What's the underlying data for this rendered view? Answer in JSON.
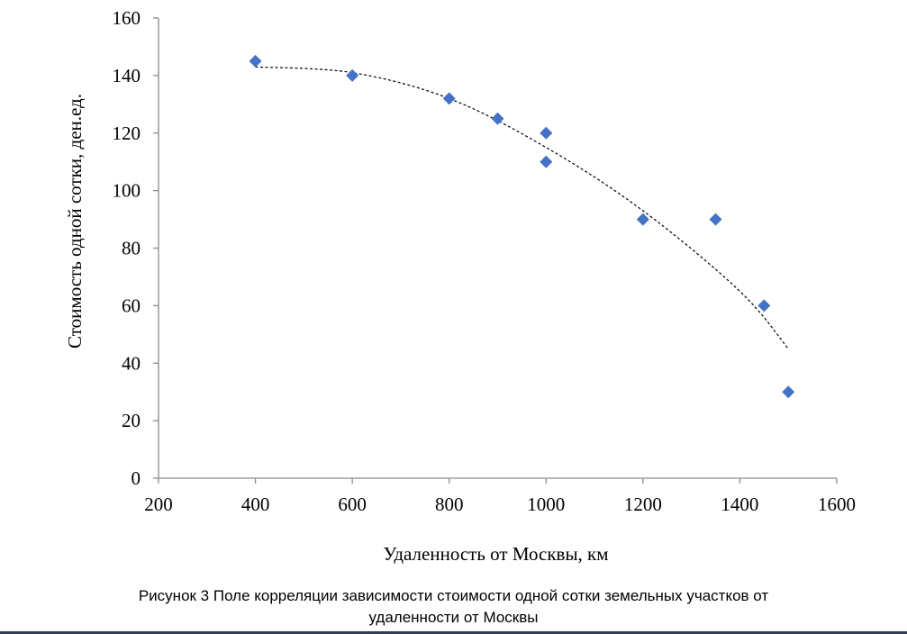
{
  "chart_data": {
    "type": "scatter",
    "title": "",
    "xlabel": "Удаленность от Москвы, км",
    "ylabel": "Стоимость одной сотки, ден.ед.",
    "xlim": [
      200,
      1600
    ],
    "ylim": [
      0,
      160
    ],
    "xticks": [
      200,
      400,
      600,
      800,
      1000,
      1200,
      1400,
      1600
    ],
    "yticks": [
      0,
      20,
      40,
      60,
      80,
      100,
      120,
      140,
      160
    ],
    "grid": false,
    "legend": "none",
    "marker": "diamond",
    "point_color": "#4472c4",
    "points": [
      {
        "x": 400,
        "y": 145
      },
      {
        "x": 600,
        "y": 140
      },
      {
        "x": 800,
        "y": 132
      },
      {
        "x": 900,
        "y": 125
      },
      {
        "x": 1000,
        "y": 120
      },
      {
        "x": 1000,
        "y": 110
      },
      {
        "x": 1200,
        "y": 90
      },
      {
        "x": 1350,
        "y": 90
      },
      {
        "x": 1450,
        "y": 60
      },
      {
        "x": 1500,
        "y": 30
      }
    ],
    "trendline": {
      "type": "polynomial",
      "style": "dotted",
      "color": "#000000",
      "points": [
        {
          "x": 400,
          "y": 143
        },
        {
          "x": 600,
          "y": 141
        },
        {
          "x": 800,
          "y": 132
        },
        {
          "x": 1000,
          "y": 115
        },
        {
          "x": 1200,
          "y": 93
        },
        {
          "x": 1400,
          "y": 65
        },
        {
          "x": 1500,
          "y": 45
        }
      ]
    }
  },
  "caption": {
    "line1": "Рисунок 3 Поле корреляции зависимости стоимости одной сотки земельных участков от",
    "line2": "удаленности от Москвы"
  }
}
